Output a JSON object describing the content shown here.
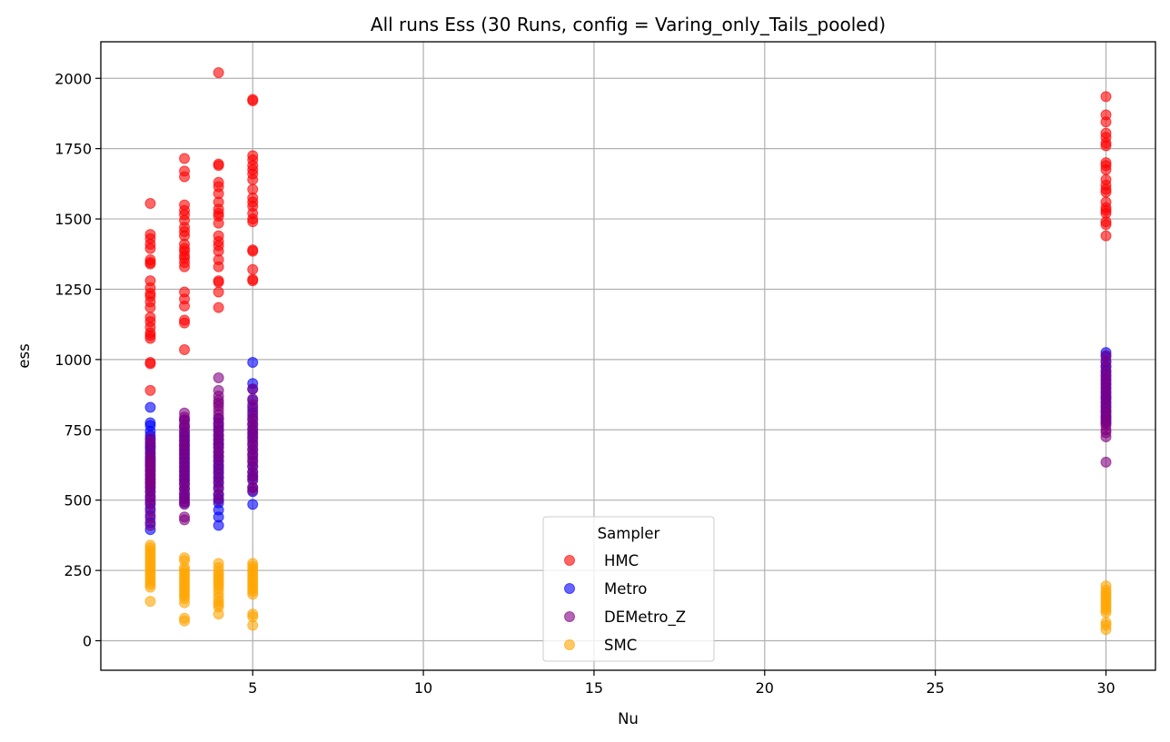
{
  "chart_data": {
    "type": "scatter",
    "title": "All runs Ess (30 Runs, config = Varing_only_Tails_pooled)",
    "xlabel": "Nu",
    "ylabel": "ess",
    "xlim": [
      0.55,
      31.45
    ],
    "ylim": [
      -105,
      2130
    ],
    "xticks": [
      5,
      10,
      15,
      20,
      25,
      30
    ],
    "yticks": [
      0,
      250,
      500,
      750,
      1000,
      1250,
      1500,
      1750,
      2000
    ],
    "grid": true,
    "legend": {
      "title": "Sampler",
      "placement": "lower center"
    },
    "series": [
      {
        "name": "HMC",
        "color": "#ff0000",
        "points": {
          "2": [
            1555,
            1445,
            1430,
            1410,
            1395,
            1355,
            1345,
            1340,
            1280,
            1255,
            1235,
            1225,
            1205,
            1185,
            1150,
            1135,
            1115,
            1095,
            1085,
            1075,
            990,
            985,
            890
          ],
          "3": [
            1715,
            1670,
            1650,
            1550,
            1530,
            1515,
            1495,
            1470,
            1455,
            1440,
            1410,
            1395,
            1385,
            1370,
            1360,
            1345,
            1330,
            1240,
            1215,
            1190,
            1140,
            1130,
            1035
          ],
          "4": [
            2020,
            1695,
            1690,
            1630,
            1615,
            1590,
            1560,
            1535,
            1520,
            1510,
            1485,
            1440,
            1420,
            1405,
            1385,
            1355,
            1330,
            1280,
            1275,
            1240,
            1185
          ],
          "5": [
            1925,
            1920,
            1725,
            1710,
            1690,
            1675,
            1660,
            1640,
            1605,
            1575,
            1560,
            1545,
            1520,
            1500,
            1490,
            1390,
            1385,
            1320,
            1285,
            1280
          ],
          "30": [
            1935,
            1870,
            1845,
            1805,
            1790,
            1770,
            1760,
            1700,
            1690,
            1675,
            1640,
            1620,
            1605,
            1595,
            1560,
            1540,
            1530,
            1520,
            1490,
            1480,
            1440
          ]
        }
      },
      {
        "name": "Metro",
        "color": "#0000ff",
        "points": {
          "2": [
            830,
            775,
            765,
            745,
            730,
            715,
            700,
            690,
            680,
            665,
            650,
            640,
            630,
            620,
            605,
            590,
            575,
            560,
            545,
            530,
            510,
            490,
            470,
            445,
            420,
            395
          ],
          "3": [
            785,
            760,
            740,
            725,
            710,
            695,
            680,
            665,
            650,
            635,
            620,
            605,
            590,
            575,
            560,
            540,
            520,
            505,
            490
          ],
          "4": [
            790,
            770,
            750,
            730,
            715,
            700,
            690,
            670,
            655,
            640,
            625,
            610,
            595,
            580,
            565,
            545,
            520,
            505,
            490,
            465,
            440,
            410
          ],
          "5": [
            990,
            915,
            895,
            855,
            830,
            810,
            790,
            770,
            750,
            735,
            720,
            700,
            680,
            660,
            640,
            620,
            600,
            585,
            575,
            545,
            530,
            485
          ],
          "30": [
            1025,
            1010,
            990,
            975,
            960,
            945,
            930,
            915,
            900,
            885,
            870,
            860,
            845,
            830,
            815,
            800,
            790,
            775
          ]
        }
      },
      {
        "name": "DEMetro_Z",
        "color": "#800080",
        "points": {
          "2": [
            720,
            705,
            690,
            670,
            655,
            645,
            635,
            625,
            615,
            605,
            595,
            585,
            575,
            565,
            555,
            545,
            530,
            515,
            500,
            485,
            460,
            435,
            410
          ],
          "3": [
            810,
            795,
            785,
            770,
            760,
            745,
            730,
            715,
            700,
            690,
            675,
            660,
            645,
            630,
            615,
            600,
            585,
            570,
            555,
            540,
            525,
            510,
            495,
            485,
            440,
            430
          ],
          "4": [
            935,
            890,
            870,
            855,
            845,
            835,
            820,
            805,
            790,
            775,
            760,
            745,
            730,
            715,
            700,
            685,
            670,
            655,
            640,
            620,
            600,
            580,
            560,
            540,
            520,
            500
          ],
          "5": [
            895,
            860,
            840,
            820,
            800,
            785,
            770,
            755,
            740,
            725,
            710,
            695,
            680,
            665,
            650,
            635,
            620,
            600,
            585,
            570,
            545,
            535
          ],
          "30": [
            1015,
            995,
            975,
            955,
            940,
            925,
            910,
            895,
            880,
            865,
            850,
            835,
            820,
            810,
            795,
            785,
            775,
            765,
            750,
            740,
            725,
            635
          ]
        }
      },
      {
        "name": "SMC",
        "color": "#ffa500",
        "points": {
          "2": [
            340,
            330,
            320,
            310,
            300,
            290,
            280,
            270,
            260,
            250,
            240,
            230,
            220,
            210,
            200,
            190,
            140
          ],
          "3": [
            295,
            285,
            260,
            250,
            240,
            230,
            220,
            210,
            200,
            190,
            180,
            170,
            160,
            150,
            135,
            80,
            70
          ],
          "4": [
            275,
            260,
            245,
            235,
            225,
            215,
            205,
            195,
            185,
            170,
            155,
            140,
            130,
            120,
            95
          ],
          "5": [
            275,
            265,
            255,
            245,
            235,
            225,
            215,
            205,
            195,
            185,
            175,
            165,
            95,
            85,
            55
          ],
          "30": [
            195,
            180,
            170,
            160,
            150,
            140,
            130,
            120,
            110,
            100,
            65,
            55,
            40
          ]
        }
      }
    ]
  }
}
